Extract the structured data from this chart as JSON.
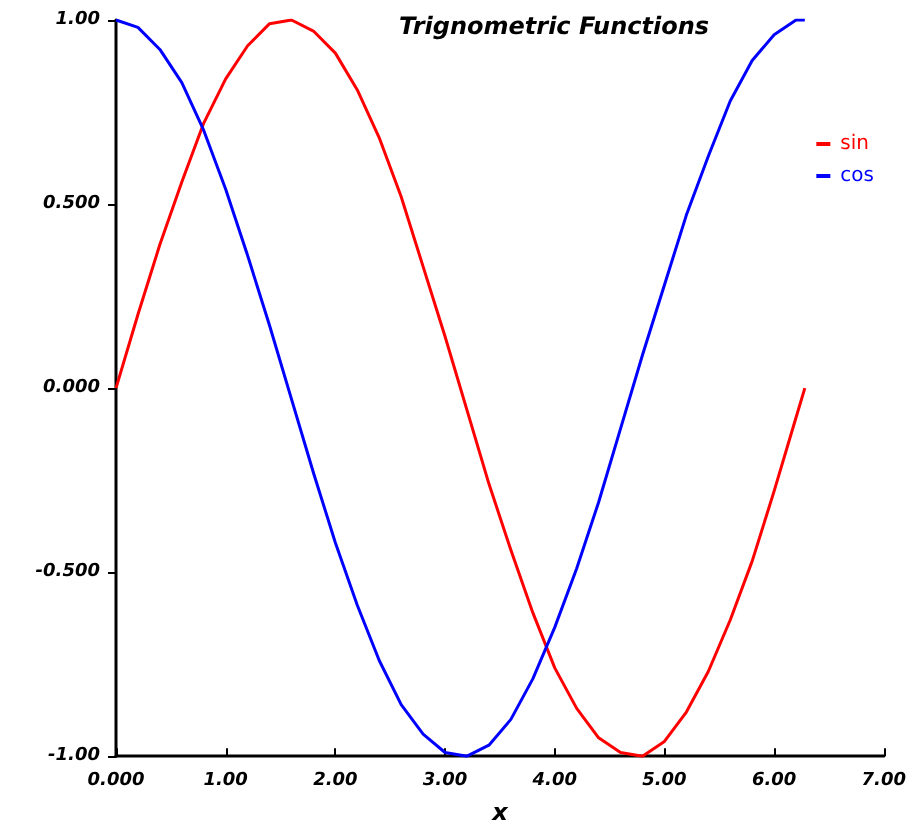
{
  "chart_data": {
    "type": "line",
    "title": "Trignometric Functions",
    "xlabel": "x",
    "x": [
      0,
      0.2,
      0.4,
      0.6,
      0.8,
      1.0,
      1.2,
      1.4,
      1.6,
      1.8,
      2.0,
      2.2,
      2.4,
      2.6,
      2.8,
      3.0,
      3.2,
      3.4,
      3.6,
      3.8,
      4.0,
      4.2,
      4.4,
      4.6,
      4.8,
      5.0,
      5.2,
      5.4,
      5.6,
      5.8,
      6.0,
      6.2,
      6.28
    ],
    "series": [
      {
        "name": "sin",
        "color": "#ff0000",
        "values": [
          0,
          0.2,
          0.39,
          0.56,
          0.72,
          0.84,
          0.93,
          0.99,
          1.0,
          0.97,
          0.91,
          0.81,
          0.68,
          0.52,
          0.33,
          0.14,
          -0.06,
          -0.26,
          -0.44,
          -0.61,
          -0.76,
          -0.87,
          -0.95,
          -0.99,
          -1.0,
          -0.96,
          -0.88,
          -0.77,
          -0.63,
          -0.47,
          -0.28,
          -0.08,
          0
        ]
      },
      {
        "name": "cos",
        "color": "#0000ff",
        "values": [
          1.0,
          0.98,
          0.92,
          0.83,
          0.7,
          0.54,
          0.36,
          0.17,
          -0.03,
          -0.23,
          -0.42,
          -0.59,
          -0.74,
          -0.86,
          -0.94,
          -0.99,
          -1.0,
          -0.97,
          -0.9,
          -0.79,
          -0.65,
          -0.49,
          -0.31,
          -0.11,
          0.09,
          0.28,
          0.47,
          0.63,
          0.78,
          0.89,
          0.96,
          1.0,
          1.0
        ]
      }
    ],
    "xlim": [
      0,
      7
    ],
    "xticks": [
      {
        "value": 0,
        "label": "0.000"
      },
      {
        "value": 1,
        "label": "1.00"
      },
      {
        "value": 2,
        "label": "2.00"
      },
      {
        "value": 3,
        "label": "3.00"
      },
      {
        "value": 4,
        "label": "4.00"
      },
      {
        "value": 5,
        "label": "5.00"
      },
      {
        "value": 6,
        "label": "6.00"
      },
      {
        "value": 7,
        "label": "7.00"
      }
    ],
    "ylim": [
      -1,
      1
    ],
    "yticks": [
      {
        "value": -1,
        "label": "-1.00"
      },
      {
        "value": -0.5,
        "label": "-0.500"
      },
      {
        "value": 0,
        "label": "0.000"
      },
      {
        "value": 0.5,
        "label": "0.500"
      },
      {
        "value": 1,
        "label": "1.00"
      }
    ],
    "grid": false,
    "legend": "top right",
    "marker": "none",
    "line_style": "solid"
  }
}
